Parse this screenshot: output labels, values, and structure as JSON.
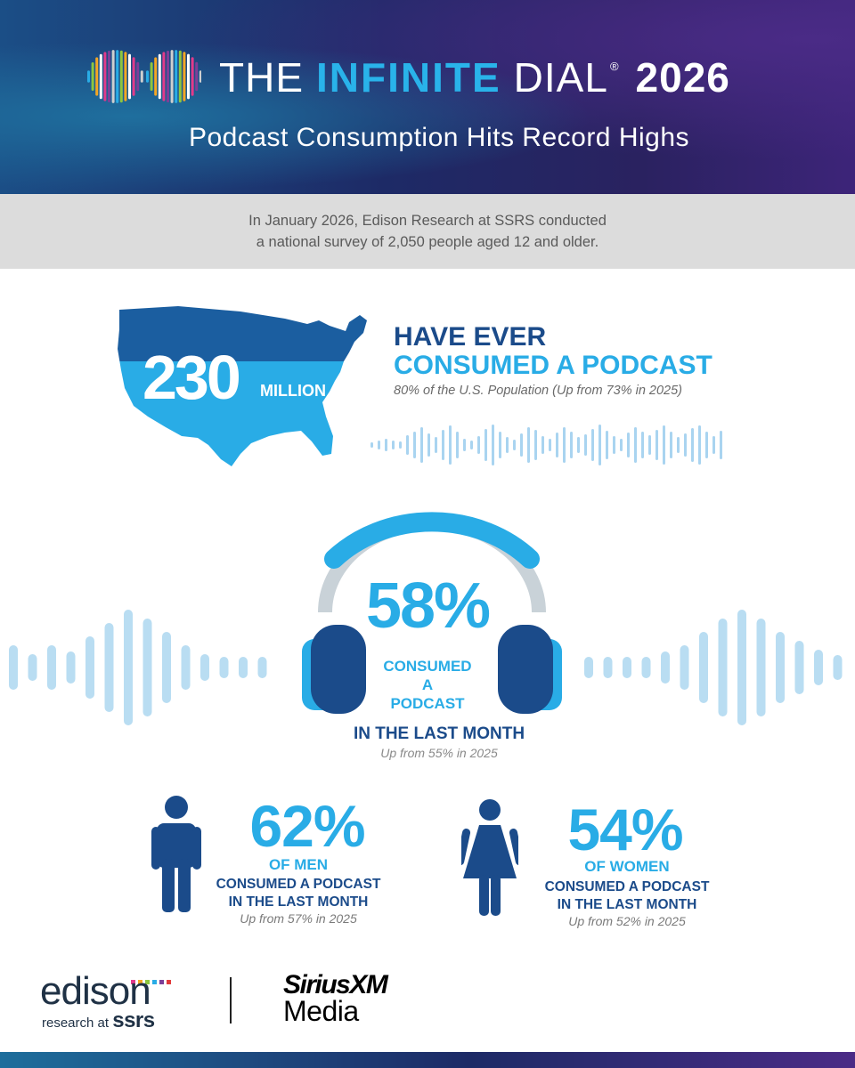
{
  "header": {
    "title_the": "THE",
    "title_infinite": "INFINITE",
    "title_dial": "DIAL",
    "title_reg": "®",
    "title_year": "2026",
    "subtitle": "Podcast Consumption Hits Record Highs"
  },
  "intro": {
    "line1": "In January 2026, Edison Research at SSRS conducted",
    "line2": "a national survey of 2,050 people aged 12 and older."
  },
  "stat_ever": {
    "value": "230",
    "unit": "MILLION",
    "line1": "HAVE EVER",
    "line2": "CONSUMED A PODCAST",
    "note": "80% of the U.S. Population (Up from 73% in 2025)"
  },
  "stat_month": {
    "value": "58%",
    "label_lines": [
      "CONSUMED",
      "A",
      "PODCAST"
    ],
    "line": "IN THE LAST MONTH",
    "note": "Up from 55% in 2025"
  },
  "stat_men": {
    "value": "62%",
    "group": "OF MEN",
    "line1": "CONSUMED A PODCAST",
    "line2": "IN THE LAST MONTH",
    "note": "Up from 57% in 2025"
  },
  "stat_women": {
    "value": "54%",
    "group": "OF WOMEN",
    "line1": "CONSUMED A PODCAST",
    "line2": "IN THE LAST MONTH",
    "note": "Up from 52% in 2025"
  },
  "footer": {
    "edison_word": "edison",
    "edison_sub_prefix": "research at ",
    "edison_sub_brand": "ssrs",
    "sxm_top": "SiriusXM",
    "sxm_bottom": "Media"
  },
  "colors": {
    "navy": "#1b4b8a",
    "sky": "#29ace6",
    "light_wave": "#b9ddf2",
    "header_gradient": [
      "#1b4e86",
      "#2a2260",
      "#3d2479"
    ]
  }
}
